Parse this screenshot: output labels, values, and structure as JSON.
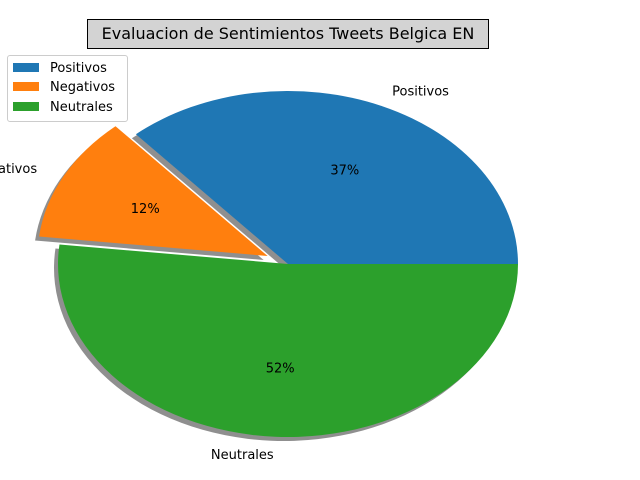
{
  "chart_data": {
    "type": "pie",
    "title": "Evaluacion de Sentimientos Tweets Belgica EN",
    "slices": [
      {
        "label": "Positivos",
        "value": 36.5,
        "pct_label": "37%",
        "color": "#1f77b4",
        "explode": 0
      },
      {
        "label": "Negativos",
        "value": 11.7,
        "pct_label": "12%",
        "color": "#ff7f0e",
        "explode": 0.1
      },
      {
        "label": "Neutrales",
        "value": 51.8,
        "pct_label": "52%",
        "color": "#2ca02c",
        "explode": 0
      }
    ],
    "start_angle_deg": 0,
    "direction": "counterclockwise",
    "shadow": true,
    "legend": {
      "placement": "top-left",
      "entries": [
        "Positivos",
        "Negativos",
        "Neutrales"
      ]
    }
  },
  "outer_labels": {
    "negativos_visible": "ativos"
  }
}
